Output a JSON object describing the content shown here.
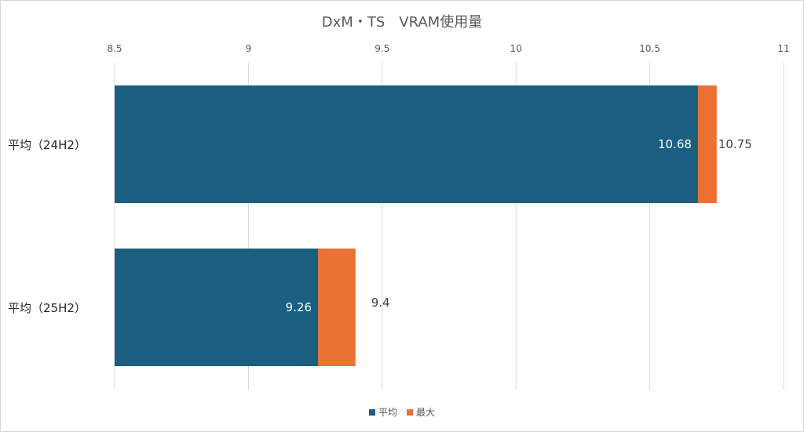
{
  "chart_data": {
    "type": "bar",
    "orientation": "horizontal",
    "title": "DxM・TS　VRAM使用量",
    "categories": [
      "平均（24H2）",
      "平均（25H2）"
    ],
    "series": [
      {
        "name": "平均",
        "values": [
          10.68,
          9.26
        ],
        "color": "#1a5e80"
      },
      {
        "name": "最大",
        "values": [
          10.75,
          9.4
        ],
        "color": "#e97132"
      }
    ],
    "xlim": [
      8.5,
      11
    ],
    "xticks": [
      "8.5",
      "9",
      "9.5",
      "10",
      "10.5",
      "11"
    ],
    "grid": true,
    "legend_position": "bottom",
    "xlabel": "",
    "ylabel": ""
  }
}
